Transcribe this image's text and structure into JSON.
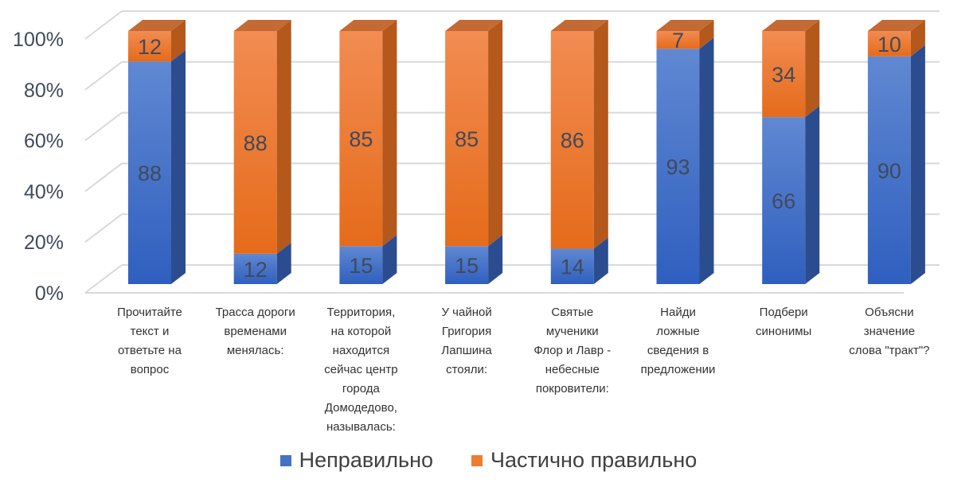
{
  "chart_data": {
    "type": "bar",
    "stacked": true,
    "percent": true,
    "three_d": true,
    "title": "",
    "xlabel": "",
    "ylabel": "",
    "ylim": [
      0,
      100
    ],
    "yticks": [
      "0%",
      "20%",
      "40%",
      "60%",
      "80%",
      "100%"
    ],
    "grid": true,
    "legend_position": "bottom",
    "categories": [
      "Прочитайте\nтекст и\nответьте на\nвопрос",
      "Трасса дороги\nвременами\nменялась:",
      "Территория,\nна которой\nнаходится\nсейчас центр\nгорода\nДомодедово,\nназывалась:",
      "У чайной\nГригория\nЛапшина\nстояли:",
      "Святые\nмученики\nФлор и Лавр -\nнебесные\nпокровители:",
      "Найди\nложные\nсведения в\nпредложении",
      "Подбери\nсинонимы",
      "Объясни\nзначение\nслова \"тракт\"?"
    ],
    "series": [
      {
        "name": "Неправильно",
        "color": "#4472c4",
        "values": [
          88,
          12,
          15,
          15,
          14,
          93,
          66,
          90
        ]
      },
      {
        "name": "Частично правильно",
        "color": "#ed7d31",
        "values": [
          12,
          88,
          85,
          85,
          86,
          7,
          34,
          10
        ]
      }
    ]
  }
}
